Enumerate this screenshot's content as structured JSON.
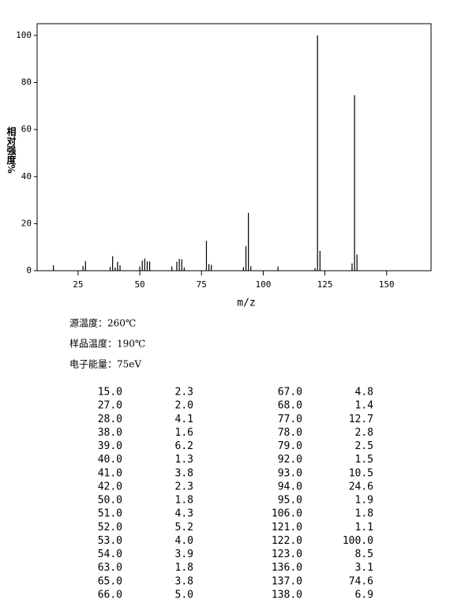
{
  "chart_data": {
    "type": "spectrum",
    "x_label": "m/z",
    "y_label": "相对强度%",
    "x": [
      15,
      27,
      28,
      38,
      39,
      40,
      41,
      42,
      50,
      51,
      52,
      53,
      54,
      63,
      65,
      66,
      67,
      68,
      77,
      78,
      79,
      92,
      93,
      94,
      95,
      106,
      121,
      122,
      123,
      136,
      137,
      138
    ],
    "values": [
      2.3,
      2.0,
      4.1,
      1.6,
      6.2,
      1.3,
      3.8,
      2.3,
      1.8,
      4.3,
      5.2,
      4.0,
      3.9,
      1.8,
      3.8,
      5.0,
      4.8,
      1.4,
      12.7,
      2.8,
      2.5,
      1.5,
      10.5,
      24.6,
      1.9,
      1.8,
      1.1,
      100.0,
      8.5,
      3.1,
      74.6,
      6.9
    ],
    "x_labels": [
      "15.0",
      "27.0",
      "28.0",
      "38.0",
      "39.0",
      "40.0",
      "41.0",
      "42.0",
      "50.0",
      "51.0",
      "52.0",
      "53.0",
      "54.0",
      "63.0",
      "65.0",
      "66.0",
      "67.0",
      "68.0",
      "77.0",
      "78.0",
      "79.0",
      "92.0",
      "93.0",
      "94.0",
      "95.0",
      "106.0",
      "121.0",
      "122.0",
      "123.0",
      "136.0",
      "137.0",
      "138.0"
    ],
    "value_labels": [
      "2.3",
      "2.0",
      "4.1",
      "1.6",
      "6.2",
      "1.3",
      "3.8",
      "2.3",
      "1.8",
      "4.3",
      "5.2",
      "4.0",
      "3.9",
      "1.8",
      "3.8",
      "5.0",
      "4.8",
      "1.4",
      "12.7",
      "2.8",
      "2.5",
      "1.5",
      "10.5",
      "24.6",
      "1.9",
      "1.8",
      "1.1",
      "100.0",
      "8.5",
      "3.1",
      "74.6",
      "6.9"
    ],
    "color": "#000000",
    "xlim": [
      8.4,
      168
    ],
    "ylim": [
      0,
      105
    ],
    "xticks": [
      25,
      50,
      75,
      100,
      125,
      150
    ],
    "yticks": [
      0,
      20,
      40,
      60,
      80,
      100
    ]
  },
  "info": [
    "源温度：260℃",
    "样品温度：190℃",
    "电子能量：75eV"
  ]
}
